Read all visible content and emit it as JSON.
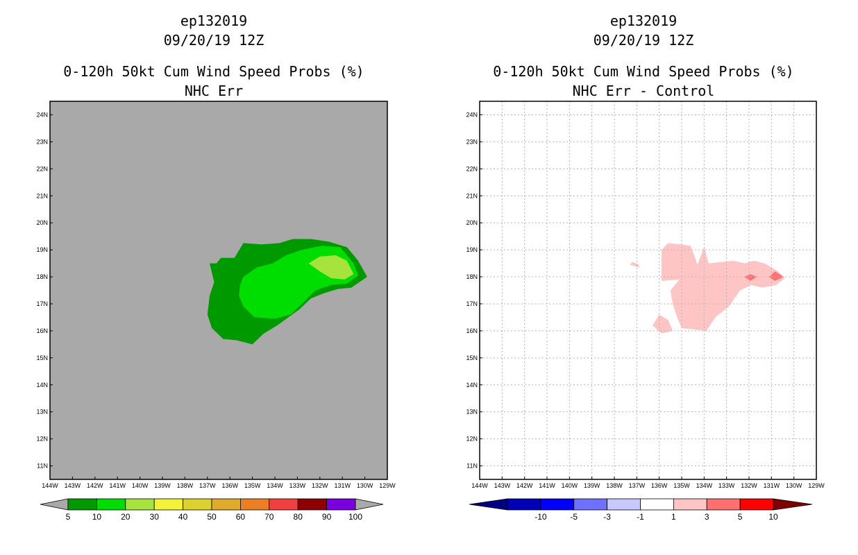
{
  "chart_data": [
    {
      "type": "heatmap",
      "storm_id": "ep132019",
      "datetime": "09/20/19 12Z",
      "title": "0-120h 50kt Cum Wind Speed Probs (%)",
      "subtitle": "NHC Err",
      "x_ticks": [
        "144W",
        "143W",
        "142W",
        "141W",
        "140W",
        "139W",
        "138W",
        "137W",
        "136W",
        "135W",
        "134W",
        "133W",
        "132W",
        "131W",
        "130W",
        "129W"
      ],
      "y_ticks": [
        "24N",
        "23N",
        "22N",
        "21N",
        "20N",
        "19N",
        "18N",
        "17N",
        "16N",
        "15N",
        "14N",
        "13N",
        "12N",
        "11N"
      ],
      "xlim": [
        -144,
        -129
      ],
      "ylim": [
        10.5,
        24.5
      ],
      "grid": false,
      "background_color": "#a9a9a9",
      "colorbar": {
        "labels": [
          "5",
          "10",
          "20",
          "30",
          "40",
          "50",
          "60",
          "70",
          "80",
          "90",
          "100"
        ],
        "colors": [
          "#009900",
          "#00dd00",
          "#a6e33c",
          "#f2f238",
          "#dcd12e",
          "#e0ab2a",
          "#ea7f24",
          "#f24040",
          "#8c0000",
          "#7a00dd"
        ],
        "end_color": "#a9a9a9"
      },
      "contours": [
        {
          "level": "5-10",
          "color": "#009900",
          "points": [
            [
              -136.6,
              18.5
            ],
            [
              -136.4,
              18.7
            ],
            [
              -135.8,
              18.7
            ],
            [
              -135.4,
              19.25
            ],
            [
              -134.6,
              19.2
            ],
            [
              -133.8,
              19.25
            ],
            [
              -133.2,
              19.4
            ],
            [
              -132.4,
              19.4
            ],
            [
              -131.6,
              19.3
            ],
            [
              -130.8,
              19.1
            ],
            [
              -130.3,
              18.6
            ],
            [
              -129.9,
              18.0
            ],
            [
              -130.6,
              17.6
            ],
            [
              -131.2,
              17.55
            ],
            [
              -131.8,
              17.4
            ],
            [
              -132.4,
              17.2
            ],
            [
              -132.9,
              16.8
            ],
            [
              -133.4,
              16.5
            ],
            [
              -133.9,
              16.2
            ],
            [
              -134.5,
              15.9
            ],
            [
              -135.0,
              15.5
            ],
            [
              -135.7,
              15.65
            ],
            [
              -136.3,
              15.7
            ],
            [
              -136.8,
              16.1
            ],
            [
              -137.0,
              16.6
            ],
            [
              -136.9,
              17.3
            ],
            [
              -136.7,
              17.8
            ],
            [
              -136.9,
              18.5
            ]
          ]
        },
        {
          "level": "10-20",
          "color": "#00dd00",
          "points": [
            [
              -135.4,
              18.0
            ],
            [
              -134.8,
              18.35
            ],
            [
              -134.1,
              18.5
            ],
            [
              -133.5,
              18.8
            ],
            [
              -132.8,
              19.0
            ],
            [
              -131.9,
              19.15
            ],
            [
              -131.1,
              19.1
            ],
            [
              -130.5,
              18.5
            ],
            [
              -130.3,
              18.05
            ],
            [
              -130.8,
              17.75
            ],
            [
              -131.5,
              17.7
            ],
            [
              -132.2,
              17.5
            ],
            [
              -132.8,
              17.0
            ],
            [
              -133.3,
              16.6
            ],
            [
              -134.0,
              16.45
            ],
            [
              -134.9,
              16.5
            ],
            [
              -135.4,
              16.9
            ],
            [
              -135.6,
              17.3
            ],
            [
              -135.55,
              17.7
            ]
          ]
        },
        {
          "level": "20-30",
          "color": "#a6e33c",
          "points": [
            [
              -132.5,
              18.5
            ],
            [
              -132.0,
              18.75
            ],
            [
              -131.3,
              18.8
            ],
            [
              -130.8,
              18.6
            ],
            [
              -130.5,
              18.1
            ],
            [
              -130.9,
              17.9
            ],
            [
              -131.5,
              17.95
            ],
            [
              -132.0,
              18.2
            ]
          ]
        }
      ]
    },
    {
      "type": "heatmap",
      "storm_id": "ep132019",
      "datetime": "09/20/19 12Z",
      "title": "0-120h 50kt Cum Wind Speed Probs (%)",
      "subtitle": "NHC Err - Control",
      "x_ticks": [
        "144W",
        "143W",
        "142W",
        "141W",
        "140W",
        "139W",
        "138W",
        "137W",
        "136W",
        "135W",
        "134W",
        "133W",
        "132W",
        "131W",
        "130W",
        "129W"
      ],
      "y_ticks": [
        "24N",
        "23N",
        "22N",
        "21N",
        "20N",
        "19N",
        "18N",
        "17N",
        "16N",
        "15N",
        "14N",
        "13N",
        "12N",
        "11N"
      ],
      "xlim": [
        -144,
        -129
      ],
      "ylim": [
        10.5,
        24.5
      ],
      "grid": true,
      "background_color": "#ffffff",
      "colorbar": {
        "labels": [
          "-10",
          "-5",
          "-3",
          "-1",
          "1",
          "3",
          "5",
          "10"
        ],
        "colors": [
          "#0000b4",
          "#0000ff",
          "#7070ff",
          "#c8c8ff",
          "#ffffff",
          "#ffc4c4",
          "#ff7070",
          "#ff0000"
        ],
        "left_end_color": "#000080",
        "right_end_color": "#800000"
      },
      "contours": [
        {
          "level": "1-3",
          "color": "#ffc4c4",
          "points": [
            [
              -135.9,
              19.0
            ],
            [
              -135.6,
              19.25
            ],
            [
              -135.0,
              19.2
            ],
            [
              -134.6,
              19.15
            ],
            [
              -134.4,
              18.7
            ],
            [
              -134.3,
              18.45
            ],
            [
              -134.0,
              19.1
            ],
            [
              -133.8,
              18.5
            ],
            [
              -133.2,
              18.55
            ],
            [
              -132.7,
              18.6
            ],
            [
              -132.2,
              18.5
            ],
            [
              -131.8,
              18.6
            ],
            [
              -131.3,
              18.5
            ],
            [
              -130.7,
              18.2
            ],
            [
              -130.4,
              17.95
            ],
            [
              -130.8,
              17.7
            ],
            [
              -131.4,
              17.6
            ],
            [
              -131.9,
              17.7
            ],
            [
              -132.4,
              17.5
            ],
            [
              -132.9,
              16.9
            ],
            [
              -133.5,
              16.5
            ],
            [
              -133.9,
              16.0
            ],
            [
              -134.4,
              16.05
            ],
            [
              -135.0,
              16.1
            ],
            [
              -135.2,
              16.5
            ],
            [
              -135.4,
              17.0
            ],
            [
              -135.5,
              17.5
            ],
            [
              -135.1,
              17.9
            ],
            [
              -135.9,
              17.85
            ],
            [
              -135.9,
              18.5
            ]
          ]
        },
        {
          "level": "1-3",
          "color": "#ffc4c4",
          "points": [
            [
              -136.0,
              16.6
            ],
            [
              -135.6,
              16.4
            ],
            [
              -135.4,
              16.0
            ],
            [
              -135.9,
              15.9
            ],
            [
              -136.3,
              16.2
            ]
          ]
        },
        {
          "level": "1-3",
          "color": "#ffc4c4",
          "points": [
            [
              -137.2,
              18.55
            ],
            [
              -136.9,
              18.45
            ],
            [
              -136.9,
              18.35
            ],
            [
              -137.3,
              18.45
            ]
          ]
        },
        {
          "level": "3-5",
          "color": "#ff7070",
          "points": [
            [
              -132.2,
              18.0
            ],
            [
              -131.95,
              18.1
            ],
            [
              -131.65,
              18.0
            ],
            [
              -131.95,
              17.85
            ]
          ]
        },
        {
          "level": "3-5",
          "color": "#ff7070",
          "points": [
            [
              -131.1,
              18.0
            ],
            [
              -130.85,
              18.2
            ],
            [
              -130.45,
              18.0
            ],
            [
              -130.85,
              17.85
            ]
          ]
        }
      ]
    }
  ]
}
